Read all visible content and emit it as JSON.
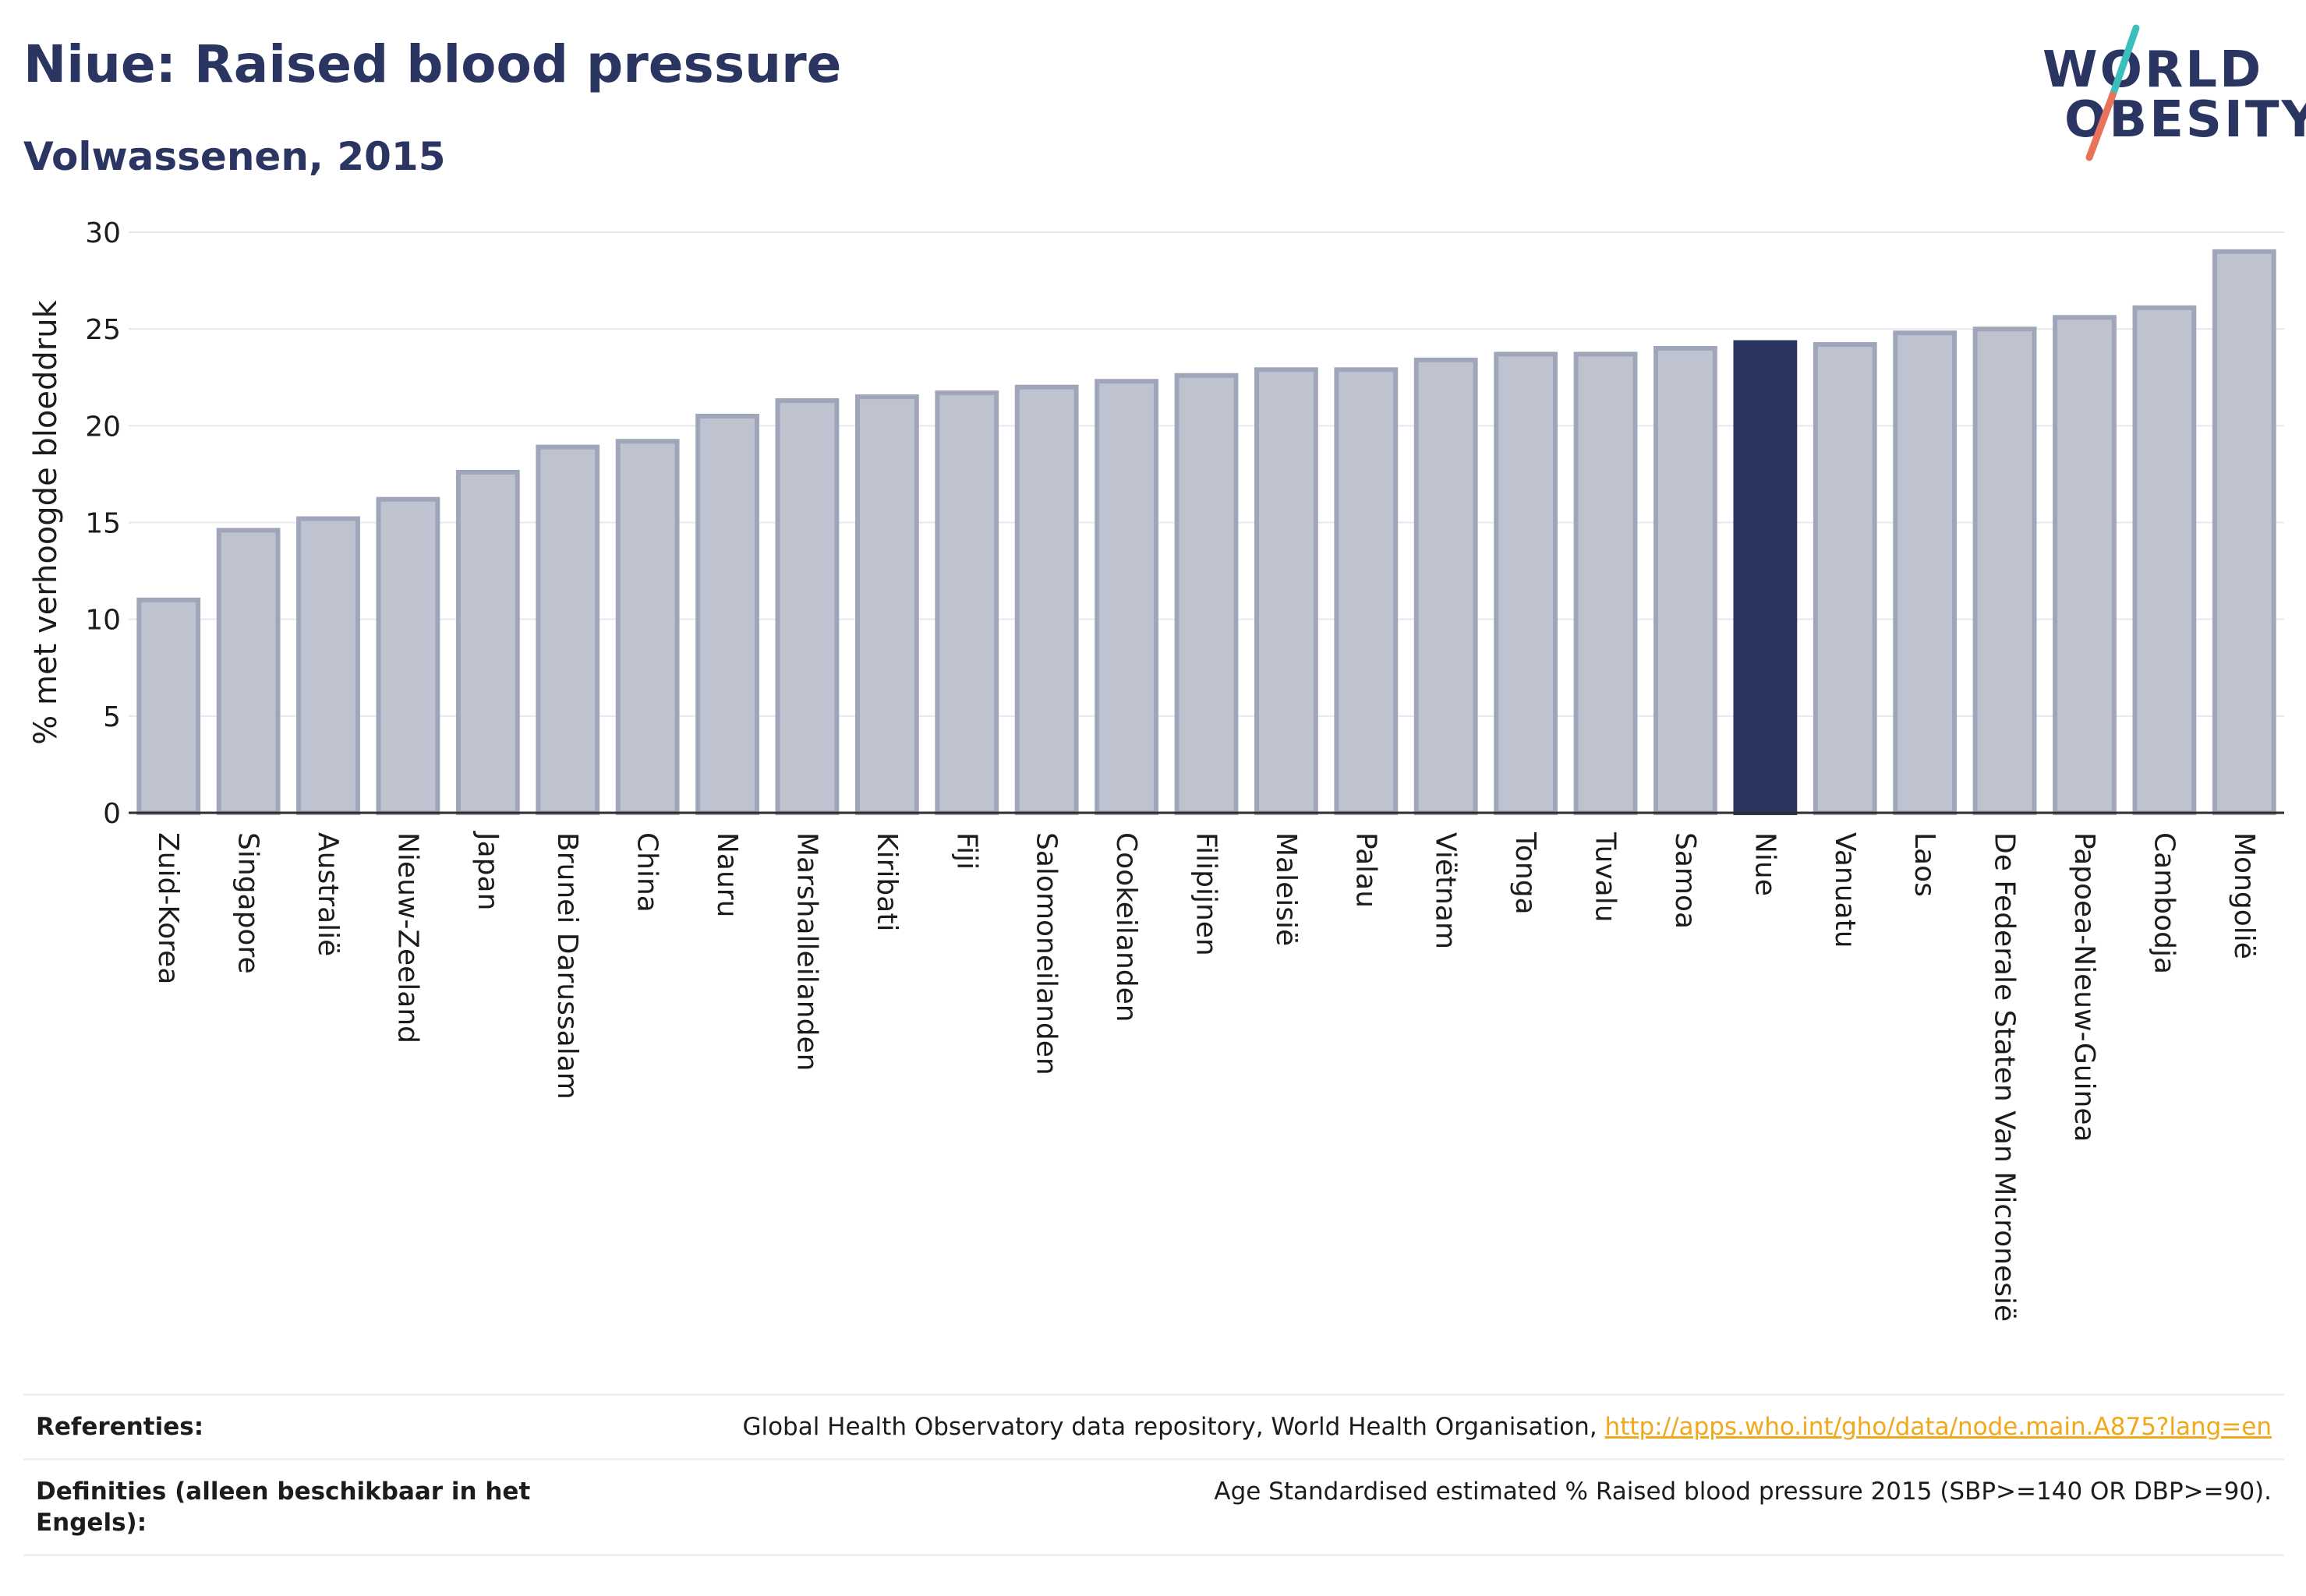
{
  "header": {
    "title": "Niue: Raised blood pressure",
    "subtitle": "Volwassenen, 2015"
  },
  "logo": {
    "line1": "WORLD",
    "line2": "OBESITY",
    "accent_colors": [
      "#3cbfbc",
      "#e8735a"
    ]
  },
  "colors": {
    "bar": "#bfc3d0",
    "bar_border": "#a0a6ba",
    "highlight": "#2b3562",
    "text": "#2b3562",
    "link": "#f0a81c"
  },
  "chart_data": {
    "type": "bar",
    "ylabel": "% met verhoogde bloeddruk",
    "ylim": [
      0,
      30
    ],
    "yticks": [
      0,
      5,
      10,
      15,
      20,
      25,
      30
    ],
    "grid": true,
    "highlight": "Niue",
    "categories": [
      "Zuid-Korea",
      "Singapore",
      "Australië",
      "Nieuw-Zeeland",
      "Japan",
      "Brunei Darussalam",
      "China",
      "Nauru",
      "Marshalleilanden",
      "Kiribati",
      "Fiji",
      "Salomoneilanden",
      "Cookeilanden",
      "Filipijnen",
      "Maleisië",
      "Palau",
      "Viëtnam",
      "Tonga",
      "Tuvalu",
      "Samoa",
      "Niue",
      "Vanuatu",
      "Laos",
      "De Federale Staten Van Micronesië",
      "Papoea-Nieuw-Guinea",
      "Cambodja",
      "Mongolië"
    ],
    "values": [
      11.0,
      14.6,
      15.2,
      16.2,
      17.6,
      18.9,
      19.2,
      20.5,
      21.3,
      21.5,
      21.7,
      22.0,
      22.3,
      22.6,
      22.9,
      22.9,
      23.4,
      23.7,
      23.7,
      24.0,
      24.3,
      24.2,
      24.8,
      25.0,
      25.6,
      26.1,
      29.0
    ]
  },
  "references": {
    "refs_label": "Referenties:",
    "refs_text": "Global Health Observatory data repository, World Health Organisation, ",
    "refs_link": "http://apps.who.int/gho/data/node.main.A875?lang=en",
    "defs_label": "Definities (alleen beschikbaar in het Engels):",
    "defs_text": "Age Standardised estimated % Raised blood pressure 2015 (SBP>=140 OR DBP>=90)."
  }
}
